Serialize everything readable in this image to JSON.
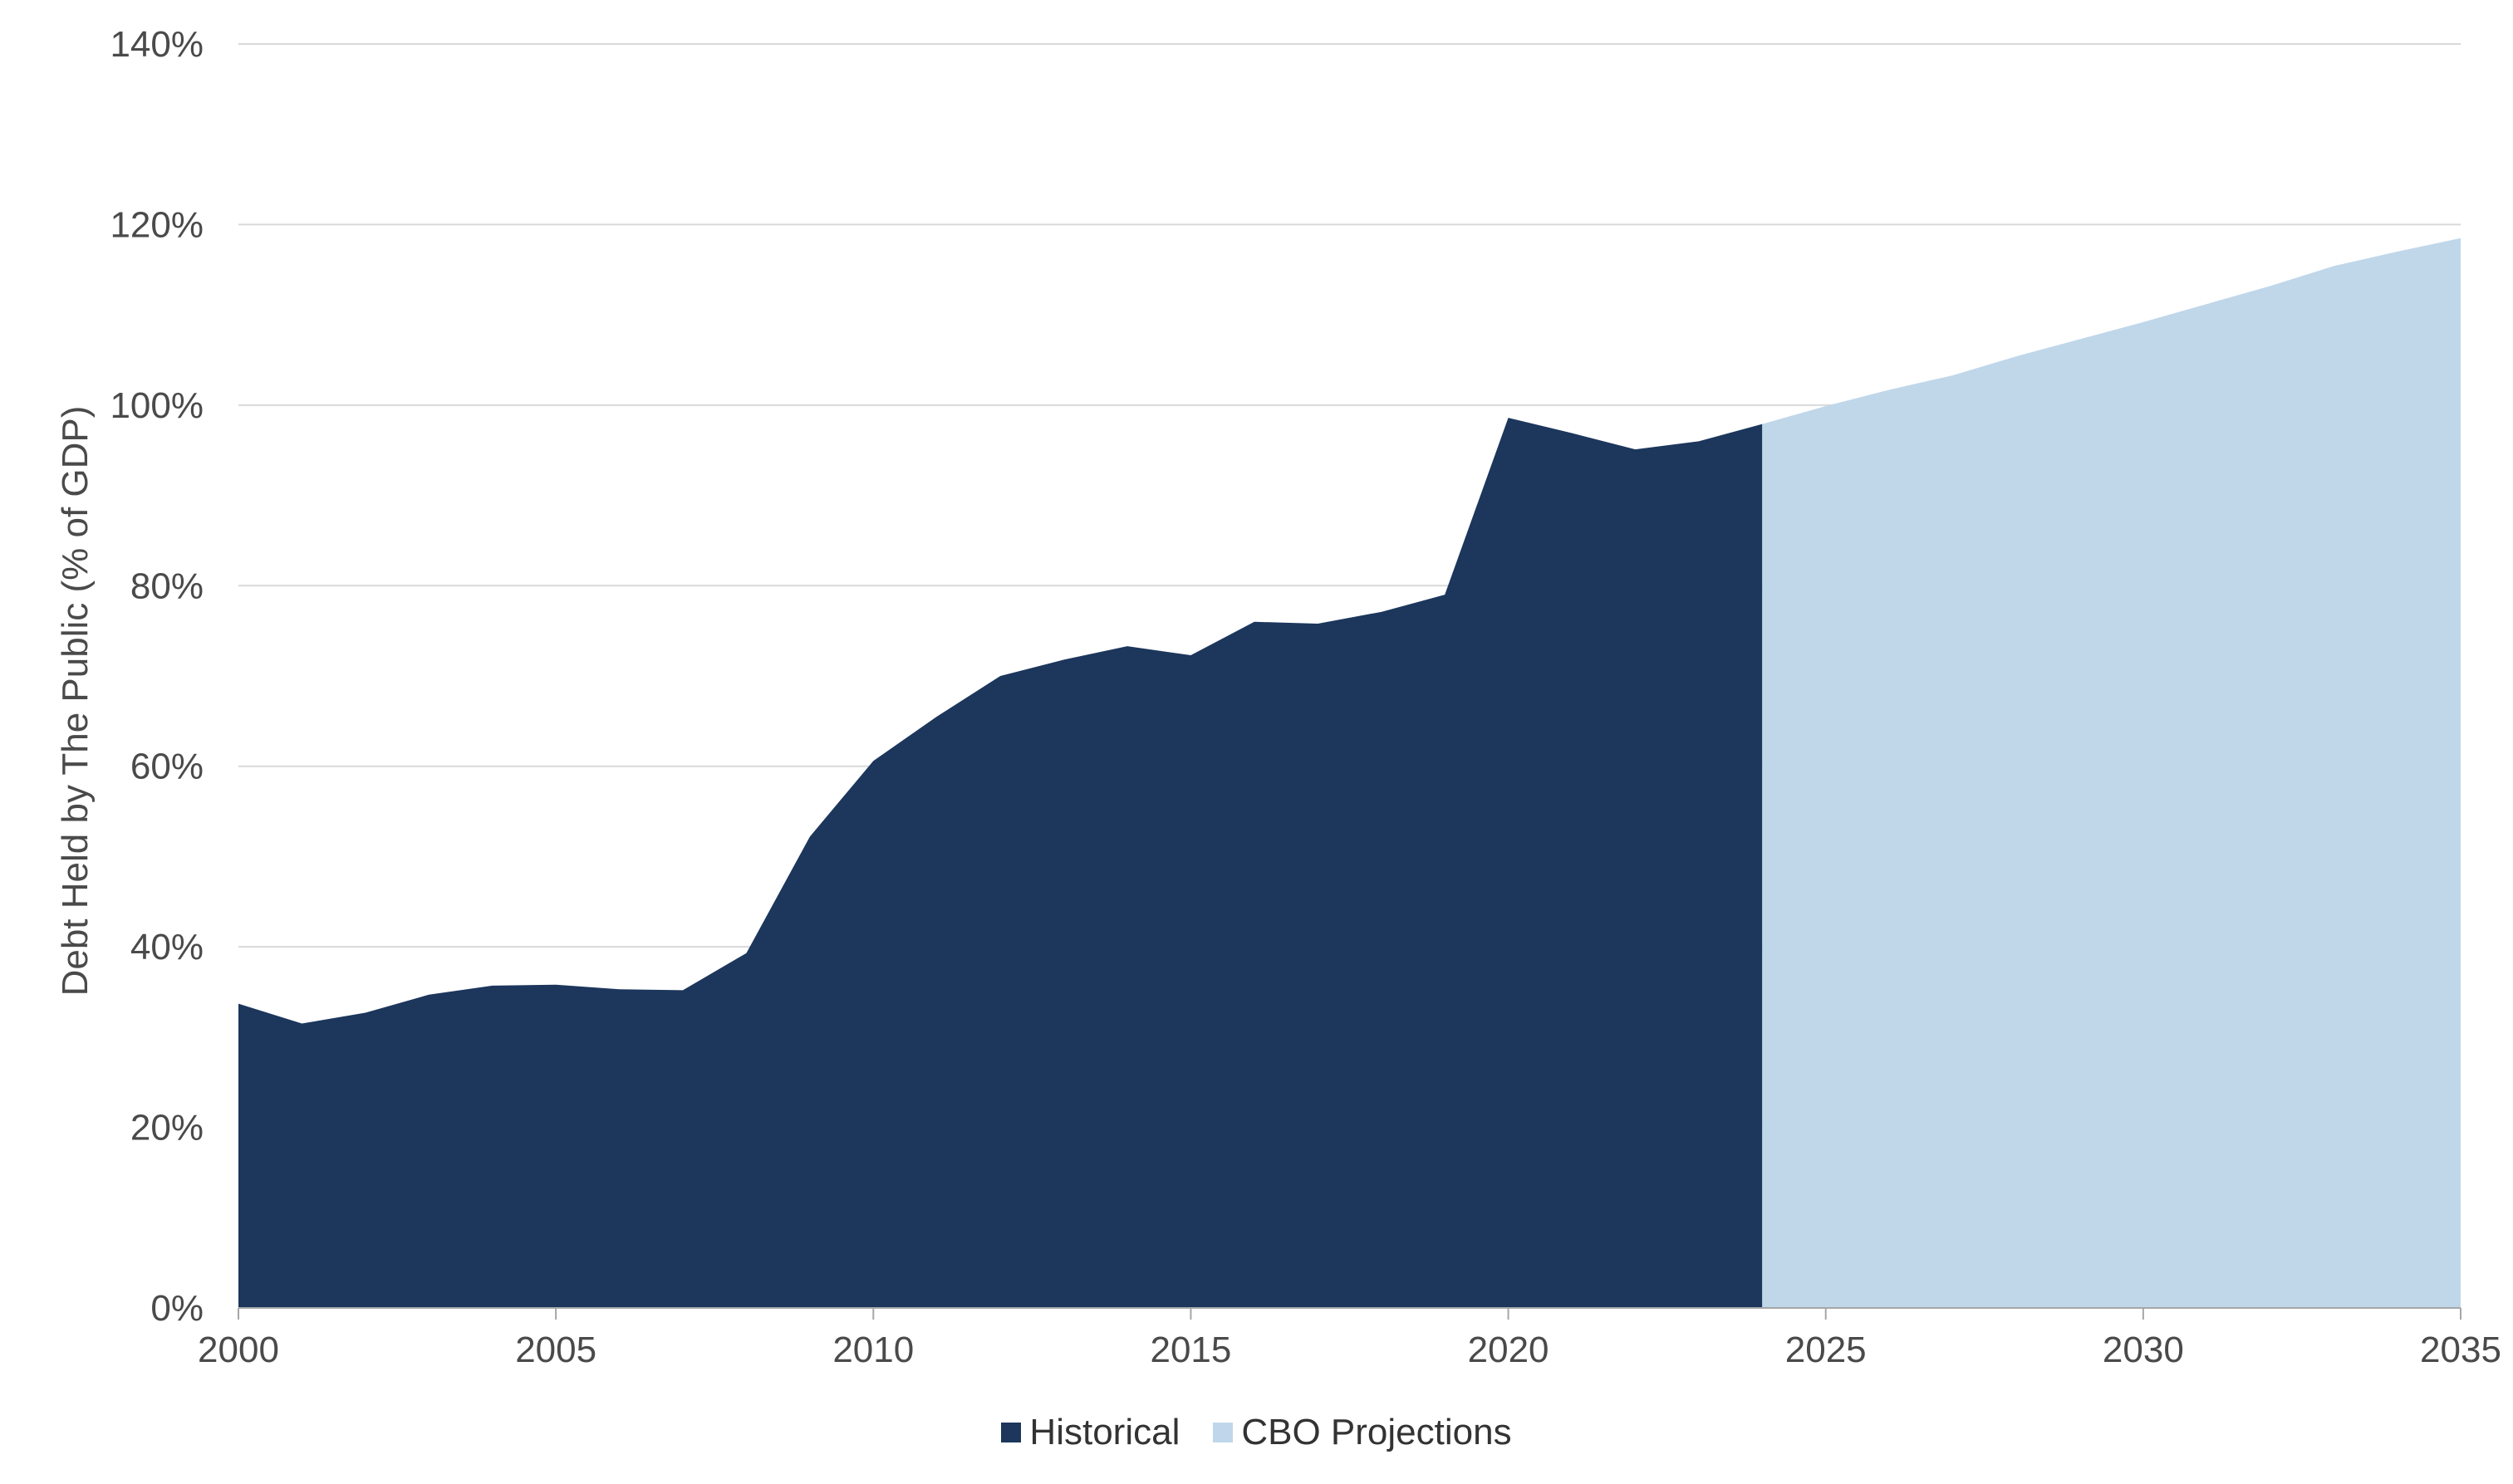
{
  "colors": {
    "historical": "#1c365c",
    "projection": "#c0d7ea",
    "grid": "#d9d9d9",
    "axis": "#a6a6a6"
  },
  "chart_data": {
    "type": "area",
    "title": "",
    "xlabel": "",
    "ylabel": "Debt Held by The Public (% of GDP)",
    "xlim": [
      2000,
      2035
    ],
    "ylim": [
      0,
      140
    ],
    "x_ticks": [
      "2000",
      "2005",
      "2010",
      "2015",
      "2020",
      "2025",
      "2030",
      "2035"
    ],
    "y_ticks": [
      "0%",
      "20%",
      "40%",
      "60%",
      "80%",
      "100%",
      "120%",
      "140%"
    ],
    "grid": true,
    "legend_position": "bottom-center",
    "series": [
      {
        "name": "Historical",
        "x": [
          2000,
          2001,
          2002,
          2003,
          2004,
          2005,
          2006,
          2007,
          2008,
          2009,
          2010,
          2011,
          2012,
          2013,
          2014,
          2015,
          2016,
          2017,
          2018,
          2019,
          2020,
          2021,
          2022,
          2023,
          2024
        ],
        "values": [
          33.7,
          31.5,
          32.7,
          34.7,
          35.7,
          35.8,
          35.3,
          35.2,
          39.3,
          52.2,
          60.6,
          65.5,
          70.0,
          71.8,
          73.3,
          72.3,
          76.0,
          75.8,
          77.1,
          79.0,
          98.6,
          96.9,
          95.1,
          96.0,
          97.9
        ]
      },
      {
        "name": "CBO Projections",
        "x": [
          2024,
          2025,
          2026,
          2027,
          2028,
          2029,
          2030,
          2031,
          2032,
          2033,
          2034,
          2035
        ],
        "values": [
          97.9,
          99.9,
          101.7,
          103.3,
          105.4,
          107.3,
          109.2,
          111.2,
          113.2,
          115.4,
          117.0,
          118.5
        ]
      }
    ]
  }
}
